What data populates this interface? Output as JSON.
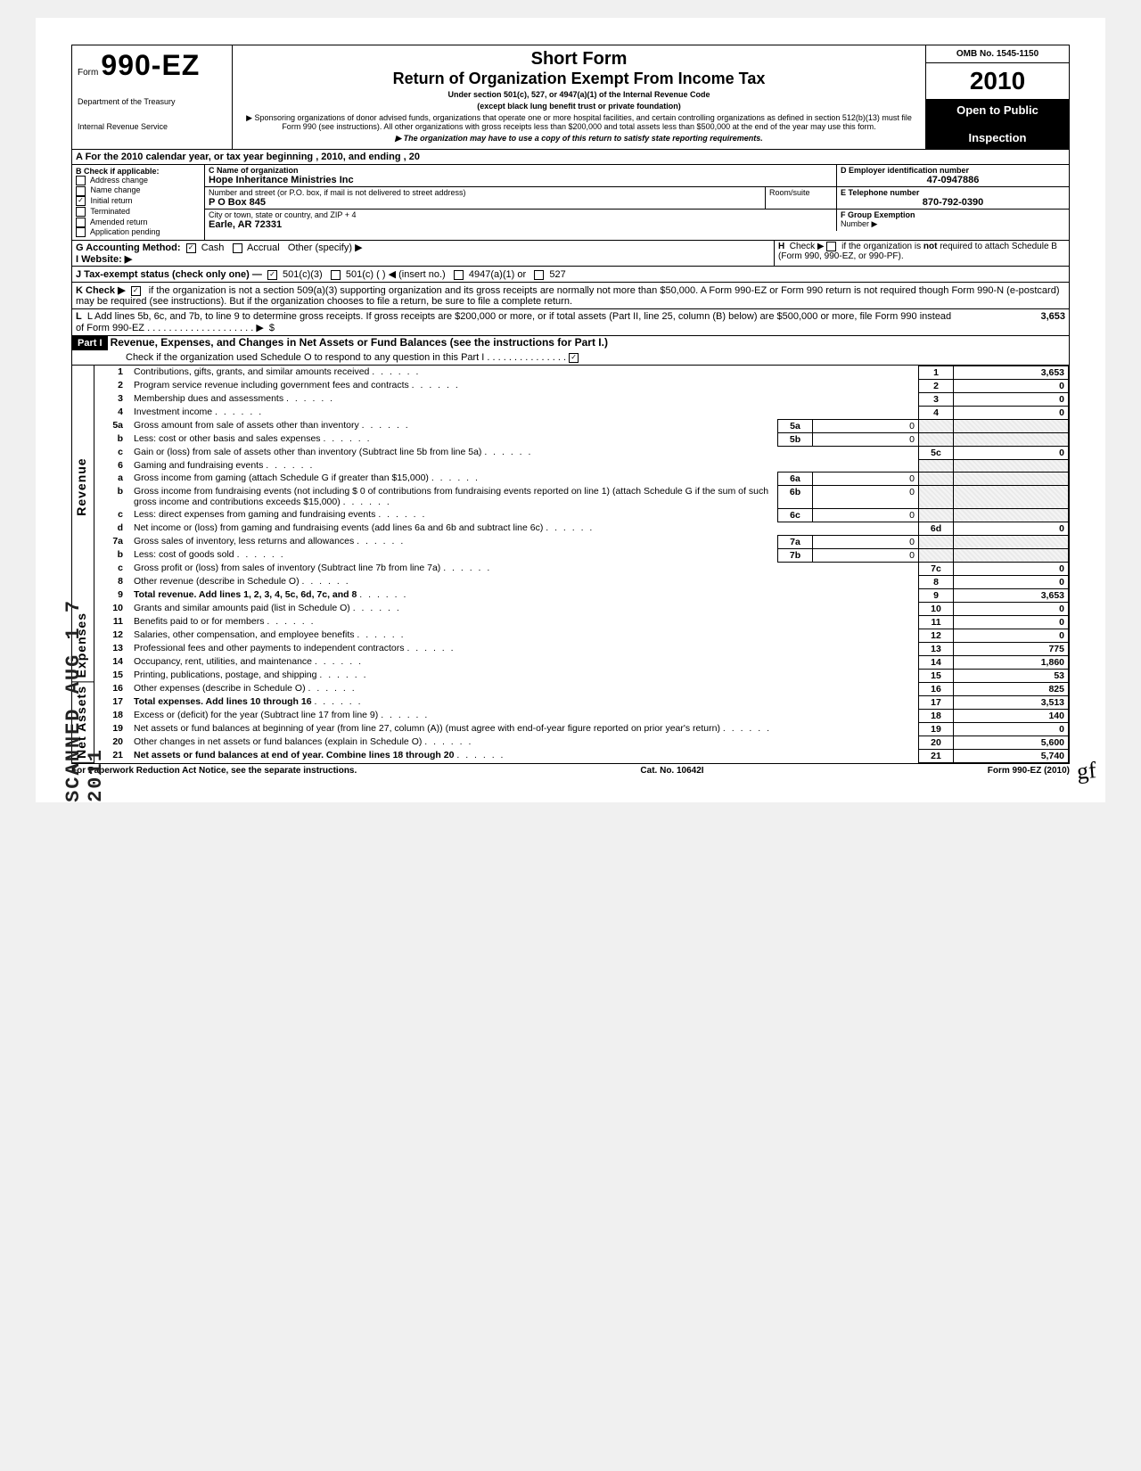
{
  "form": {
    "prefix": "Form",
    "number": "990-EZ",
    "dept1": "Department of the Treasury",
    "dept2": "Internal Revenue Service",
    "title1": "Short Form",
    "title2": "Return of Organization Exempt From Income Tax",
    "sub1": "Under section 501(c), 527, or 4947(a)(1) of the Internal Revenue Code",
    "sub2": "(except black lung benefit trust or private foundation)",
    "sub3": "▶ Sponsoring organizations of donor advised funds, organizations that operate one or more hospital facilities, and certain controlling organizations as defined in section 512(b)(13) must file Form 990 (see instructions). All other organizations with gross receipts less than $200,000 and total assets less than $500,000 at the end of the year may use this form.",
    "sub4": "▶ The organization may have to use a copy of this return to satisfy state reporting requirements.",
    "omb": "OMB No. 1545-1150",
    "year_prefix": "20",
    "year_bold": "10",
    "open1": "Open to Public",
    "open2": "Inspection"
  },
  "a_line": "A  For the 2010 calendar year, or tax year beginning                                                                            , 2010, and ending                                              , 20",
  "b_header": "B  Check if applicable:",
  "b_items": [
    "Address change",
    "Name change",
    "Initial return",
    "Terminated",
    "Amended return",
    "Application pending"
  ],
  "b_checked_index": 2,
  "c_label": "C  Name of organization",
  "c_name": "Hope Inheritance Ministries Inc",
  "c_street_label": "Number and street (or P.O. box, if mail is not delivered to street address)",
  "c_room_label": "Room/suite",
  "c_street": "P O Box 845",
  "c_city_label": "City or town, state or country, and ZIP + 4",
  "c_city": "Earle, AR  72331",
  "d_label": "D Employer identification number",
  "d_value": "47-0947886",
  "e_label": "E Telephone number",
  "e_value": "870-792-0390",
  "f_label": "F Group Exemption",
  "f_label2": "Number ▶",
  "g_label": "G  Accounting Method:",
  "g_cash": "Cash",
  "g_accrual": "Accrual",
  "g_other": "Other (specify) ▶",
  "i_label": "I   Website: ▶",
  "h_label": "H  Check ▶        if the organization is not required to attach Schedule B (Form 990, 990-EZ, or 990-PF).",
  "j_label": "J  Tax-exempt status (check only one) —",
  "j_501c3": "501(c)(3)",
  "j_501c": "501(c) (          ) ◀ (insert no.)",
  "j_4947": "4947(a)(1) or",
  "j_527": "527",
  "k_label": "K  Check ▶",
  "k_text": "if the organization is not a section 509(a)(3) supporting organization and its gross receipts are normally not more than $50,000.  A Form 990-EZ or Form 990 return is not required though Form 990-N (e-postcard) may be required (see instructions). But if the organization chooses to file a return, be sure to file a complete return.",
  "l_text": "L  Add lines 5b, 6c, and 7b, to line 9 to determine gross receipts. If gross receipts are $200,000 or more, or if total assets (Part II, line  25, column (B) below) are $500,000 or more, file Form 990 instead of Form 990-EZ",
  "l_value": "3,653",
  "part1_label": "Part I",
  "part1_title": "Revenue, Expenses, and Changes in Net Assets or Fund Balances (see the instructions for Part I.)",
  "part1_check": "Check if the organization used Schedule O to respond to any question in this Part I",
  "side_revenue": "Revenue",
  "side_expenses": "Expenses",
  "side_netassets": "Net Assets",
  "stamp_text": "SCANNED  AUG 1 7 2011",
  "lines": {
    "1": {
      "desc": "Contributions, gifts, grants, and similar amounts received",
      "out": "3,653"
    },
    "2": {
      "desc": "Program service revenue including government fees and contracts",
      "out": "0"
    },
    "3": {
      "desc": "Membership dues and assessments",
      "out": "0"
    },
    "4": {
      "desc": "Investment income",
      "out": "0"
    },
    "5a": {
      "desc": "Gross amount from sale of assets other than inventory",
      "in": "0"
    },
    "5b": {
      "desc": "Less: cost or other basis and sales expenses",
      "in": "0"
    },
    "5c": {
      "desc": "Gain or (loss) from sale of assets other than inventory (Subtract line 5b from line 5a)",
      "out": "0"
    },
    "6": {
      "desc": "Gaming and fundraising events"
    },
    "6a": {
      "desc": "Gross income from gaming (attach Schedule G if greater than $15,000)",
      "in": "0"
    },
    "6b": {
      "desc": "Gross income from fundraising events (not including $                    0 of contributions from fundraising events reported on line 1) (attach Schedule G if the sum of such gross income and contributions exceeds $15,000)",
      "in": "0"
    },
    "6c": {
      "desc": "Less: direct expenses from gaming and fundraising events",
      "in": "0"
    },
    "6d": {
      "desc": "Net income or (loss) from gaming and fundraising events (add lines 6a and 6b and subtract line 6c)",
      "out": "0"
    },
    "7a": {
      "desc": "Gross sales of inventory, less returns and allowances",
      "in": "0"
    },
    "7b": {
      "desc": "Less: cost of goods sold",
      "in": "0"
    },
    "7c": {
      "desc": "Gross profit or (loss) from sales of inventory (Subtract line 7b from line 7a)",
      "out": "0"
    },
    "8": {
      "desc": "Other revenue (describe in Schedule O)",
      "out": "0"
    },
    "9": {
      "desc": "Total revenue. Add lines 1, 2, 3, 4, 5c, 6d, 7c, and 8",
      "out": "3,653",
      "bold": true
    },
    "10": {
      "desc": "Grants and similar amounts paid (list in Schedule O)",
      "out": "0"
    },
    "11": {
      "desc": "Benefits paid to or for members",
      "out": "0"
    },
    "12": {
      "desc": "Salaries, other compensation, and employee benefits",
      "out": "0"
    },
    "13": {
      "desc": "Professional fees and other payments to independent contractors",
      "out": "775"
    },
    "14": {
      "desc": "Occupancy, rent, utilities, and maintenance",
      "out": "1,860"
    },
    "15": {
      "desc": "Printing, publications, postage, and shipping",
      "out": "53"
    },
    "16": {
      "desc": "Other expenses (describe in Schedule O)",
      "out": "825"
    },
    "17": {
      "desc": "Total expenses. Add lines 10 through 16",
      "out": "3,513",
      "bold": true
    },
    "18": {
      "desc": "Excess or (deficit) for the year (Subtract line 17 from line 9)",
      "out": "140"
    },
    "19": {
      "desc": "Net assets or fund balances at beginning of year (from line 27, column (A)) (must agree with end-of-year figure reported on prior year's return)",
      "out": "0"
    },
    "20": {
      "desc": "Other changes in net assets or fund balances (explain in Schedule O)",
      "out": "5,600"
    },
    "21": {
      "desc": "Net assets or fund balances at end of year. Combine lines 18 through 20",
      "out": "5,740",
      "bold": true
    }
  },
  "footer": {
    "left": "For Paperwork Reduction Act Notice, see the separate instructions.",
    "mid": "Cat. No. 10642I",
    "right": "Form 990-EZ (2010)"
  },
  "colors": {
    "page_bg": "#ffffff",
    "ink": "#000000",
    "shade": "#eeeeee"
  }
}
